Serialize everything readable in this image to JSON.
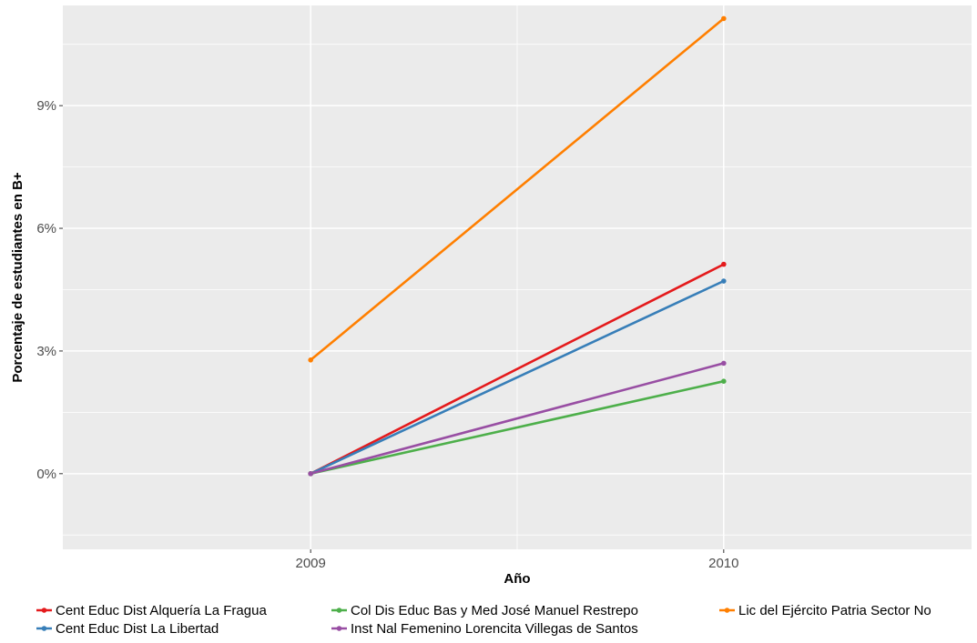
{
  "chart_data": {
    "type": "line",
    "xlabel": "Año",
    "ylabel": "Porcentaje de estudiantes en B+",
    "x": [
      2009,
      2010
    ],
    "x_tick_labels": [
      "2009",
      "2010"
    ],
    "xlim": [
      2008.4,
      2010.6
    ],
    "ylim": [
      -0.0185,
      0.1145
    ],
    "y_ticks": [
      0,
      0.03,
      0.06,
      0.09
    ],
    "y_tick_labels": [
      "0%",
      "3%",
      "6%",
      "9%"
    ],
    "grid": true,
    "legend_position": "bottom",
    "series": [
      {
        "name": "Cent Educ Dist Alquería La Fragua",
        "color": "#e41a1c",
        "values": [
          0.0,
          0.0512
        ]
      },
      {
        "name": "Cent Educ Dist La Libertad",
        "color": "#377eb8",
        "values": [
          0.0,
          0.0471
        ]
      },
      {
        "name": "Col Dis Educ Bas y Med José Manuel Restrepo",
        "color": "#4daf4a",
        "values": [
          0.0,
          0.0226
        ]
      },
      {
        "name": "Inst Nal Femenino Lorencita Villegas de Santos",
        "color": "#984ea3",
        "values": [
          0.0,
          0.027
        ]
      },
      {
        "name": "Lic del Ejército Patria Sector No",
        "color": "#ff7f00",
        "values": [
          0.0278,
          0.1113
        ]
      }
    ]
  }
}
